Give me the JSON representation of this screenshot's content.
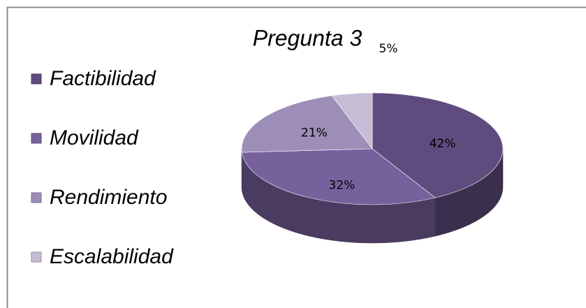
{
  "chart_data": {
    "type": "pie",
    "title": "Pregunta 3",
    "categories": [
      "Factibilidad",
      "Movilidad",
      "Rendimiento",
      "Escalabilidad"
    ],
    "values": [
      42,
      32,
      21,
      5
    ],
    "value_labels": [
      "42%",
      "32%",
      "21%",
      "5%"
    ],
    "colors": [
      "#5f4b7d",
      "#77619d",
      "#9d8eb8",
      "#c6bcd6"
    ],
    "legend": "left"
  }
}
